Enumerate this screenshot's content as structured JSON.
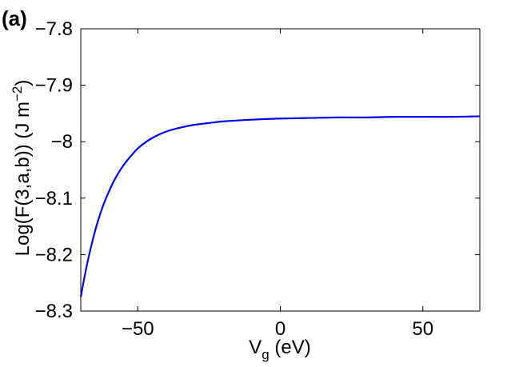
{
  "chart_data": {
    "type": "line",
    "panel_label": "(a)",
    "xlabel": {
      "main": "V",
      "sub": "g",
      "rest": " (eV)"
    },
    "ylabel": {
      "main": "Log(F(3,a,b)) (J m",
      "sup": "−2",
      "rest": ")"
    },
    "xlim": [
      -70,
      70
    ],
    "ylim": [
      -8.3,
      -7.8
    ],
    "xticks": [
      -50,
      0,
      50
    ],
    "xtick_labels": [
      "−50",
      "0",
      "50"
    ],
    "yticks": [
      -7.8,
      -7.9,
      -8.0,
      -8.1,
      -8.2,
      -8.3
    ],
    "ytick_labels": [
      "−7.8",
      "−7.9",
      "−8",
      "−8.1",
      "−8.2",
      "−8.3"
    ],
    "grid": false,
    "line_color": "#0000ee",
    "series": [
      {
        "x": [
          -70,
          -68,
          -66,
          -64,
          -62,
          -60,
          -58,
          -56,
          -54,
          -52,
          -50,
          -47,
          -44,
          -40,
          -35,
          -30,
          -25,
          -20,
          -10,
          0,
          10,
          20,
          30,
          40,
          50,
          60,
          70
        ],
        "y": [
          -8.275,
          -8.222,
          -8.178,
          -8.141,
          -8.111,
          -8.087,
          -8.066,
          -8.049,
          -8.035,
          -8.023,
          -8.012,
          -8.0,
          -7.991,
          -7.982,
          -7.975,
          -7.97,
          -7.967,
          -7.964,
          -7.961,
          -7.959,
          -7.958,
          -7.957,
          -7.957,
          -7.956,
          -7.956,
          -7.956,
          -7.955
        ]
      }
    ]
  }
}
